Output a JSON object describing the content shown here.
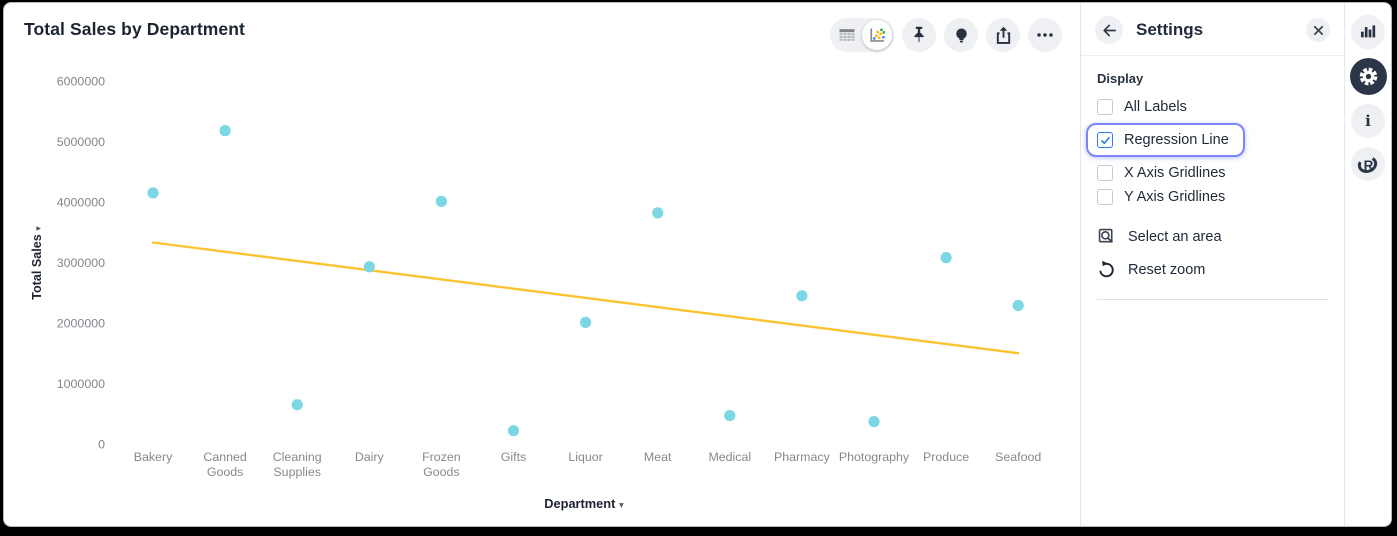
{
  "header": {
    "title": "Total Sales by Department"
  },
  "toolbar": {
    "icons": [
      "table-view-icon",
      "scatter-view-icon",
      "pin-icon",
      "insights-bulb-icon",
      "export-icon",
      "more-ellipsis-icon"
    ],
    "active_view": "scatter"
  },
  "settings_panel": {
    "title": "Settings",
    "back_icon": "arrow-left-icon",
    "close_icon": "close-icon",
    "section_label": "Display",
    "checkboxes": [
      {
        "label": "All Labels",
        "checked": false,
        "focused": false
      },
      {
        "label": "Regression Line",
        "checked": true,
        "focused": true
      },
      {
        "label": "X Axis Gridlines",
        "checked": false,
        "focused": false
      },
      {
        "label": "Y Axis Gridlines",
        "checked": false,
        "focused": false
      }
    ],
    "actions": [
      {
        "label": "Select an area",
        "icon": "select-area-icon"
      },
      {
        "label": "Reset zoom",
        "icon": "reset-zoom-icon"
      }
    ]
  },
  "right_rail": {
    "items": [
      {
        "icon": "bar-chart-icon",
        "active": false
      },
      {
        "icon": "settings-gear-icon",
        "active": true
      },
      {
        "icon": "info-icon",
        "active": false
      },
      {
        "icon": "r-logo-icon",
        "active": false
      }
    ]
  },
  "chart_data": {
    "type": "scatter",
    "title": "Total Sales by Department",
    "xlabel": "Department",
    "ylabel": "Total Sales",
    "categories": [
      "Bakery",
      "Canned Goods",
      "Cleaning Supplies",
      "Dairy",
      "Frozen Goods",
      "Gifts",
      "Liquor",
      "Meat",
      "Medical",
      "Pharmacy",
      "Photography",
      "Produce",
      "Seafood"
    ],
    "values": [
      4150000,
      5180000,
      650000,
      2930000,
      4010000,
      220000,
      2010000,
      3820000,
      470000,
      2450000,
      370000,
      3080000,
      2290000
    ],
    "yticks": [
      0,
      1000000,
      2000000,
      3000000,
      4000000,
      5000000,
      6000000
    ],
    "ylim": [
      0,
      6000000
    ],
    "grid": false,
    "legend": "none",
    "point_color": "#7bd7e4",
    "regression_line": {
      "start_value": 3330000,
      "end_value": 1500000,
      "color": "#fcc230"
    }
  }
}
